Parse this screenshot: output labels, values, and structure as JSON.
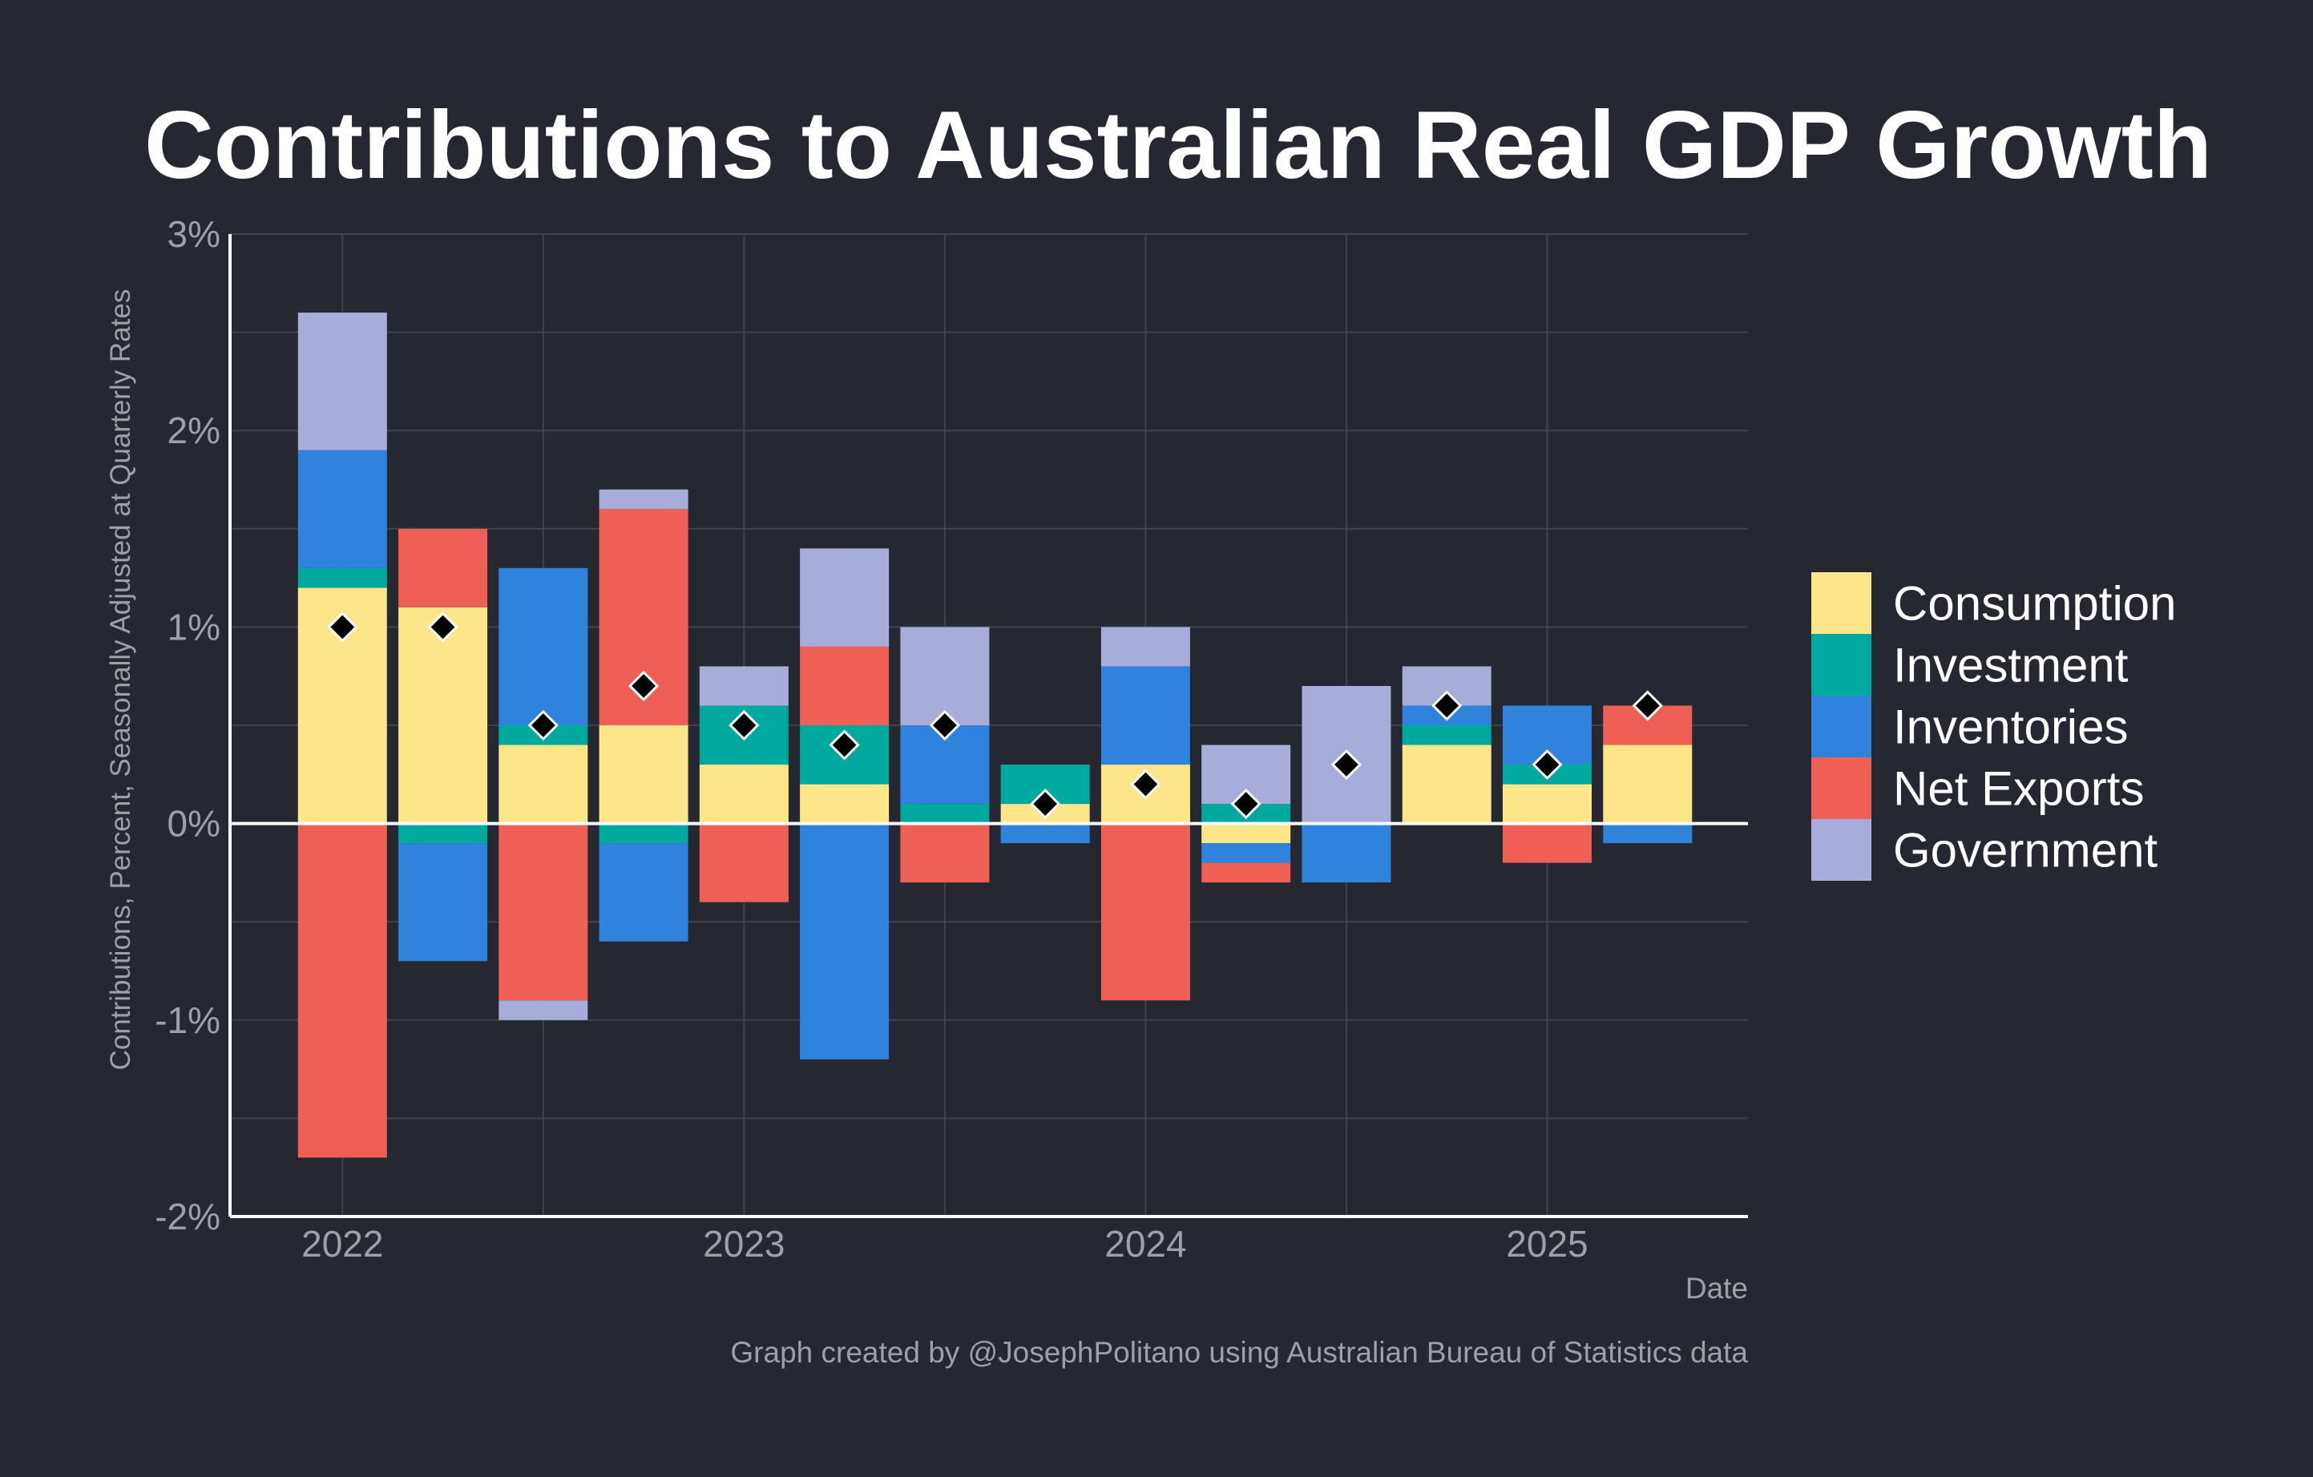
{
  "chart_data": {
    "type": "bar",
    "stacked": true,
    "title": "Contributions to Australian Real GDP Growth",
    "xlabel": "Date",
    "ylabel": "Contributions, Percent, Seasonally Adjusted at Quarterly Rates",
    "caption": "Graph created by @JosephPolitano using Australian Bureau of Statistics data",
    "ylim": [
      -2,
      3
    ],
    "yticks": [
      -2,
      -1,
      0,
      1,
      2,
      3
    ],
    "ytick_labels": [
      "-2%",
      "-1%",
      "0%",
      "1%",
      "2%",
      "3%"
    ],
    "xlim": [
      2021.72,
      2025.5
    ],
    "xticks": [
      2022,
      2023,
      2024,
      2025
    ],
    "xtick_labels": [
      "2022",
      "2023",
      "2024",
      "2025"
    ],
    "x": [
      2022.0,
      2022.25,
      2022.5,
      2022.75,
      2023.0,
      2023.25,
      2023.5,
      2023.75,
      2024.0,
      2024.25,
      2024.5,
      2024.75,
      2025.0,
      2025.25
    ],
    "grid": true,
    "legend_position": "right",
    "series": [
      {
        "name": "Consumption",
        "color": "#FDE68A",
        "values": [
          1.2,
          1.1,
          0.4,
          0.5,
          0.3,
          0.2,
          0.0,
          0.1,
          0.3,
          -0.1,
          0.0,
          0.4,
          0.2,
          0.4
        ]
      },
      {
        "name": "Investment",
        "color": "#00A99D",
        "values": [
          0.1,
          -0.1,
          0.1,
          -0.1,
          0.3,
          0.3,
          0.1,
          0.2,
          0.0,
          0.1,
          0.0,
          0.1,
          0.1,
          0.0
        ]
      },
      {
        "name": "Inventories",
        "color": "#3083DC",
        "values": [
          0.6,
          -0.6,
          0.8,
          -0.5,
          0.0,
          -1.2,
          0.4,
          -0.1,
          0.5,
          -0.1,
          -0.3,
          0.1,
          0.3,
          -0.1
        ]
      },
      {
        "name": "Net Exports",
        "color": "#EE6055",
        "values": [
          -1.7,
          0.4,
          -0.9,
          1.1,
          -0.4,
          0.4,
          -0.3,
          0.0,
          -0.9,
          -0.1,
          0.0,
          0.0,
          -0.2,
          0.2
        ]
      },
      {
        "name": "Government",
        "color": "#A7ACD9",
        "values": [
          0.7,
          0.0,
          -0.1,
          0.1,
          0.2,
          0.5,
          0.5,
          0.0,
          0.2,
          0.3,
          0.7,
          0.2,
          0.0,
          0.0
        ]
      }
    ],
    "total": {
      "marker": "diamond",
      "color": "#000000",
      "values": [
        1.0,
        1.0,
        0.5,
        0.7,
        0.5,
        0.4,
        0.5,
        0.1,
        0.2,
        0.1,
        0.3,
        0.6,
        0.3,
        0.6
      ]
    }
  },
  "colors": {
    "background": "#252830",
    "grid": "#3E424B",
    "axis": "#FFFFFF",
    "tick_text": "#9DA0A6",
    "title_text": "#FFFFFF",
    "legend_text": "#FFFFFF"
  }
}
